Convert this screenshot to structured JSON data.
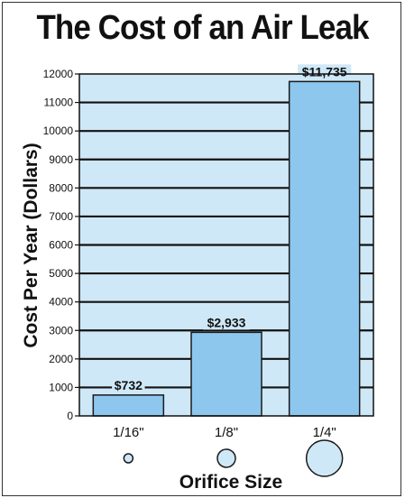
{
  "chart_data": {
    "type": "bar",
    "title": "The Cost of an Air Leak",
    "xlabel": "Orifice Size",
    "ylabel": "Cost Per Year (Dollars)",
    "categories": [
      "1/16\"",
      "1/8\"",
      "1/4\""
    ],
    "values": [
      732,
      2933,
      11735
    ],
    "data_labels": [
      "$732",
      "$2,933",
      "$11,735"
    ],
    "ylim": [
      0,
      12000
    ],
    "yticks": [
      0,
      1000,
      2000,
      3000,
      4000,
      5000,
      6000,
      7000,
      8000,
      9000,
      10000,
      11000,
      12000
    ],
    "grid": true,
    "legend": "none",
    "orifice_circle_relative_size": [
      1,
      2,
      4
    ]
  },
  "colors": {
    "plot_background": "#cfe8f7",
    "bar_fill": "#8ec7ee",
    "bar_stroke": "#1a1a1a",
    "grid_line": "#111111",
    "text": "#111111"
  }
}
